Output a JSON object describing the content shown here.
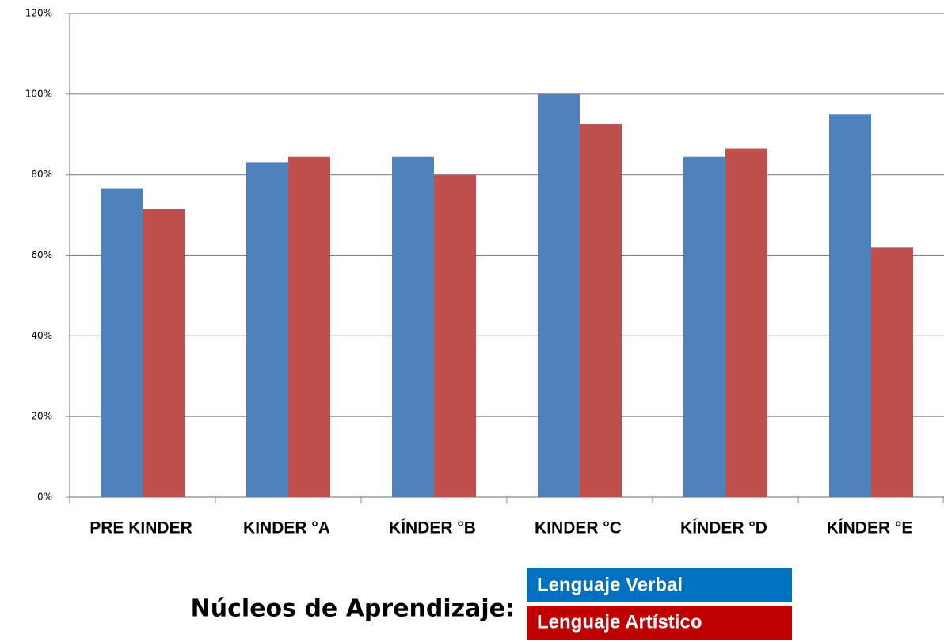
{
  "chart_data": {
    "type": "bar",
    "categories": [
      "PRE KINDER",
      "KINDER °A",
      "KÍNDER °B",
      "KINDER °C",
      "KÍNDER °D",
      "KÍNDER °E"
    ],
    "series": [
      {
        "name": "Lenguaje Verbal",
        "color": "#4f81bd",
        "values": [
          76.5,
          83,
          84.5,
          100,
          84.5,
          95
        ]
      },
      {
        "name": "Lenguaje Artístico",
        "color": "#c0504d",
        "values": [
          71.5,
          84.5,
          80,
          92.5,
          86.5,
          62
        ]
      }
    ],
    "ylim": [
      0,
      120
    ],
    "yticks": [
      {
        "value": 0,
        "label": "0%"
      },
      {
        "value": 20,
        "label": "20%"
      },
      {
        "value": 40,
        "label": "40%"
      },
      {
        "value": 60,
        "label": "60%"
      },
      {
        "value": 80,
        "label": "80%"
      },
      {
        "value": 100,
        "label": "100%"
      },
      {
        "value": 120,
        "label": "120%"
      }
    ],
    "grid": true,
    "legend_title": "Núcleos de Aprendizaje:"
  }
}
